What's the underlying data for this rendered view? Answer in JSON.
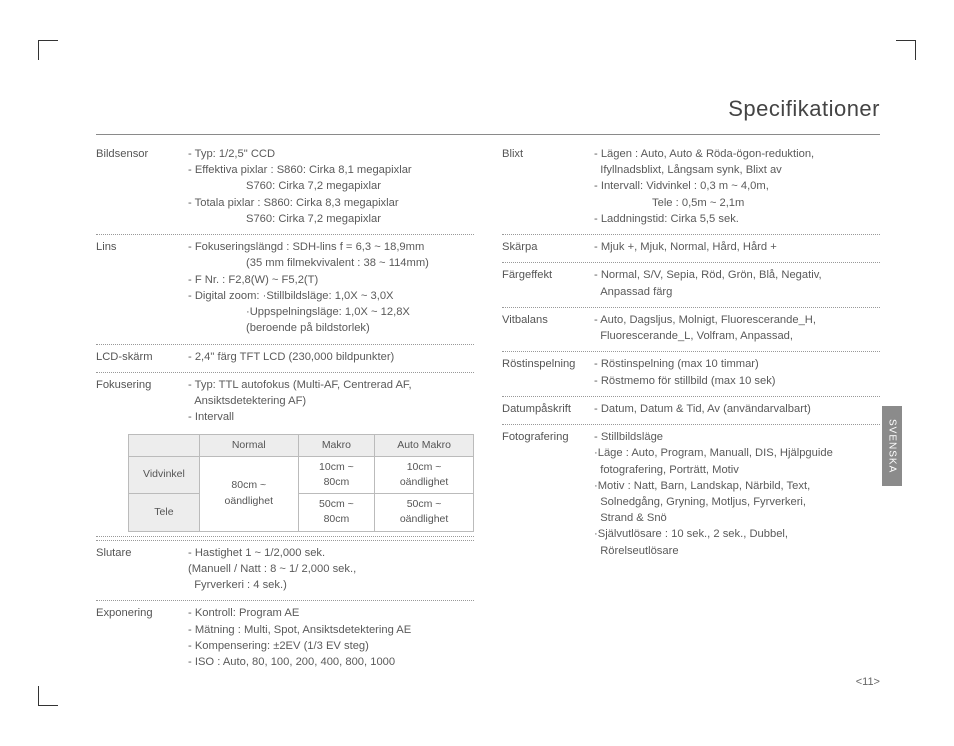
{
  "title": "Specifikationer",
  "page_number": "<11>",
  "side_tab": "SVENSKA",
  "col1": [
    {
      "label": "Bildsensor",
      "lines": [
        "- Typ: 1/2,5\" CCD",
        "- Effektiva pixlar : S860: Cirka 8,1 megapixlar",
        {
          "ind": "S760: Cirka 7,2 megapixlar"
        },
        "- Totala pixlar : S860: Cirka 8,3 megapixlar",
        {
          "ind": "S760: Cirka 7,2 megapixlar"
        }
      ]
    },
    {
      "label": "Lins",
      "lines": [
        "- Fokuseringslängd : SDH-lins f = 6,3 ~ 18,9mm",
        {
          "ind": "(35 mm filmekvivalent : 38 ~ 114mm)"
        },
        "- F Nr. : F2,8(W) ~ F5,2(T)",
        "- Digital zoom: ·Stillbildsläge: 1,0X ~ 3,0X",
        {
          "ind": "·Uppspelningsläge: 1,0X ~ 12,8X"
        },
        {
          "ind": "(beroende på bildstorlek)"
        }
      ]
    },
    {
      "label": "LCD-skärm",
      "lines": [
        "- 2,4\" färg TFT LCD (230,000 bildpunkter)"
      ]
    },
    {
      "label": "Fokusering",
      "lines": [
        "- Typ: TTL autofokus (Multi-AF, Centrerad AF,",
        "  Ansiktsdetektering AF)",
        "- Intervall"
      ],
      "has_table": true
    },
    {
      "label": "Slutare",
      "lines": [
        "- Hastighet 1 ~ 1/2,000 sek.",
        " (Manuell / Natt : 8 ~ 1/ 2,000 sek.,",
        "  Fyrverkeri : 4 sek.)"
      ]
    },
    {
      "label": "Exponering",
      "lines": [
        "- Kontroll: Program AE",
        "- Mätning : Multi, Spot, Ansiktsdetektering AE",
        "- Kompensering: ±2EV (1/3 EV steg)",
        "- ISO :  Auto, 80, 100, 200, 400, 800, 1000"
      ]
    }
  ],
  "focus_table": {
    "headers": [
      "Normal",
      "Makro",
      "Auto Makro"
    ],
    "rows": [
      {
        "name": "Vidvinkel",
        "cells": [
          "80cm ~ oändlighet",
          "10cm ~ 80cm",
          "10cm ~ oändlighet"
        ],
        "merge": true
      },
      {
        "name": "Tele",
        "cells": [
          "",
          "50cm ~ 80cm",
          "50cm ~ oändlighet"
        ]
      }
    ]
  },
  "col2": [
    {
      "label": "Blixt",
      "lines": [
        "- Lägen : Auto, Auto & Röda-ögon-reduktion,",
        "  Ifyllnadsblixt, Långsam synk, Blixt av",
        "- Intervall: Vidvinkel : 0,3 m ~ 4,0m,",
        {
          "ind": "Tele : 0,5m ~ 2,1m"
        },
        "- Laddningstid: Cirka 5,5 sek."
      ]
    },
    {
      "label": "Skärpa",
      "lines": [
        "- Mjuk +, Mjuk, Normal, Hård, Hård +"
      ]
    },
    {
      "label": "Färgeffekt",
      "lines": [
        "- Normal, S/V, Sepia, Röd, Grön, Blå, Negativ,",
        "  Anpassad färg"
      ]
    },
    {
      "label": "Vitbalans",
      "lines": [
        "- Auto, Dagsljus, Molnigt, Fluorescerande_H,",
        "  Fluorescerande_L, Volfram, Anpassad,"
      ]
    },
    {
      "label": "Röstinspelning",
      "lines": [
        "- Röstinspelning (max 10 timmar)",
        "- Röstmemo för stillbild (max 10 sek)"
      ]
    },
    {
      "label": "Datumpåskrift",
      "lines": [
        "- Datum, Datum & Tid, Av (användarvalbart)"
      ]
    },
    {
      "label": "Fotografering",
      "lines": [
        "- Stillbildsläge",
        "·Läge : Auto, Program, Manuall, DIS, Hjälpguide",
        "  fotografering, Porträtt, Motiv",
        "·Motiv : Natt, Barn, Landskap, Närbild, Text,",
        "  Solnedgång, Gryning, Motljus, Fyrverkeri,",
        "  Strand & Snö",
        "·Självutlösare : 10 sek., 2 sek., Dubbel,",
        "  Rörelseutlösare"
      ],
      "no_divider": true
    }
  ]
}
